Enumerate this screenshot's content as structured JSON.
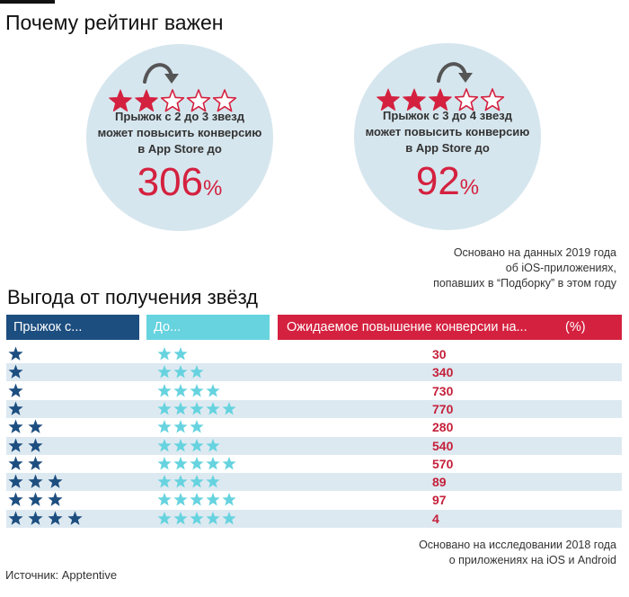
{
  "header": {
    "title": "Почему рейтинг важен"
  },
  "cards": [
    {
      "from_stars": 2,
      "to_stars": 3,
      "total_stars": 5,
      "description_lines": [
        "Прыжок с 2 до 3 звезд",
        "может повысить конверсию",
        "в App Store до"
      ],
      "value": "306",
      "unit": "%"
    },
    {
      "from_stars": 3,
      "to_stars": 4,
      "total_stars": 5,
      "description_lines": [
        "Прыжок с 3 до 4 звезд",
        "может повысить конверсию",
        "в App Store до"
      ],
      "value": "92",
      "unit": "%"
    }
  ],
  "note_top": [
    "Основано на данных 2019 года",
    "об iOS-приложениях,",
    "попавших в “Подборку” в этом году"
  ],
  "section_title": "Выгода от получения звёзд",
  "table": {
    "headers": {
      "from": "Прыжок с...",
      "to": "До...",
      "value": "Ожидаемое повышение конверсии на...",
      "unit": "(%)"
    }
  },
  "chart_data": {
    "type": "table",
    "title": "Выгода от получения звёзд",
    "columns": [
      "Прыжок с...",
      "До...",
      "Ожидаемое повышение конверсии на... (%)"
    ],
    "rows": [
      {
        "from": 1,
        "to": 2,
        "value": 30
      },
      {
        "from": 1,
        "to": 3,
        "value": 340
      },
      {
        "from": 1,
        "to": 4,
        "value": 730
      },
      {
        "from": 1,
        "to": 5,
        "value": 770
      },
      {
        "from": 2,
        "to": 3,
        "value": 280
      },
      {
        "from": 2,
        "to": 4,
        "value": 540
      },
      {
        "from": 2,
        "to": 5,
        "value": 570
      },
      {
        "from": 3,
        "to": 4,
        "value": 89
      },
      {
        "from": 3,
        "to": 5,
        "value": 97
      },
      {
        "from": 4,
        "to": 5,
        "value": 4
      }
    ]
  },
  "note_bottom": [
    "Основано на исследовании 2018 года",
    "о приложениях на iOS и Android"
  ],
  "source": "Источник: Apptentive",
  "colors": {
    "red": "#d4213f",
    "navy": "#1d4e80",
    "cyan": "#66d3df",
    "circle": "#d6e6ee",
    "row_alt": "#dde9f1",
    "arrow": "#555555"
  }
}
